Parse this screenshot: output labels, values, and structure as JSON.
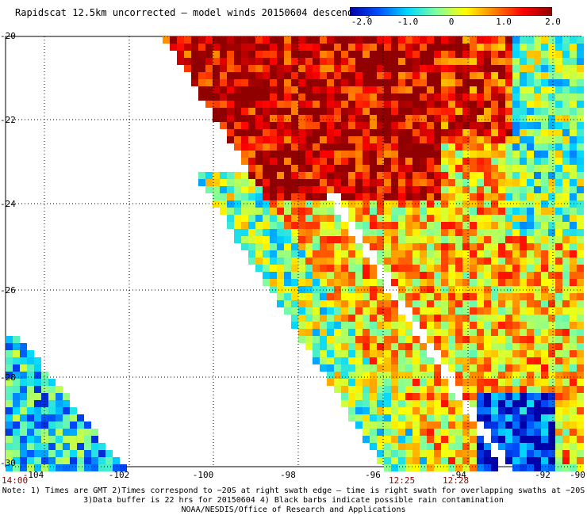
{
  "title": "Rapidscat 12.5km uncorrected — model winds 20150604 descending",
  "colorbar": {
    "labels": [
      "-2.0",
      "-1.0",
      "0",
      "1.0",
      "2.0"
    ],
    "stops": [
      "#0000a8",
      "#0050ff",
      "#00d8ff",
      "#7fff9f",
      "#ffff00",
      "#ff8000",
      "#ff0000",
      "#900000"
    ]
  },
  "map": {
    "lat_ticks": [
      "-20",
      "-22",
      "-24",
      "-26",
      "-28",
      "-30"
    ],
    "lon_ticks": [
      "-104",
      "-102",
      "-100",
      "-98",
      "-96",
      "-94",
      "-92",
      "-90"
    ],
    "times": [
      "14:00",
      "12:25",
      "12:28"
    ]
  },
  "notes": [
    "Note: 1) Times are GMT 2)Times correspond to −20S at right swath edge — time is right swath for overlapping swaths at −20S",
    "3)Data buffer is 22 hrs for 20150604 4) Black barbs indicate possible rain contamination",
    "NOAA/NESDIS/Office of Research and Applications"
  ]
}
